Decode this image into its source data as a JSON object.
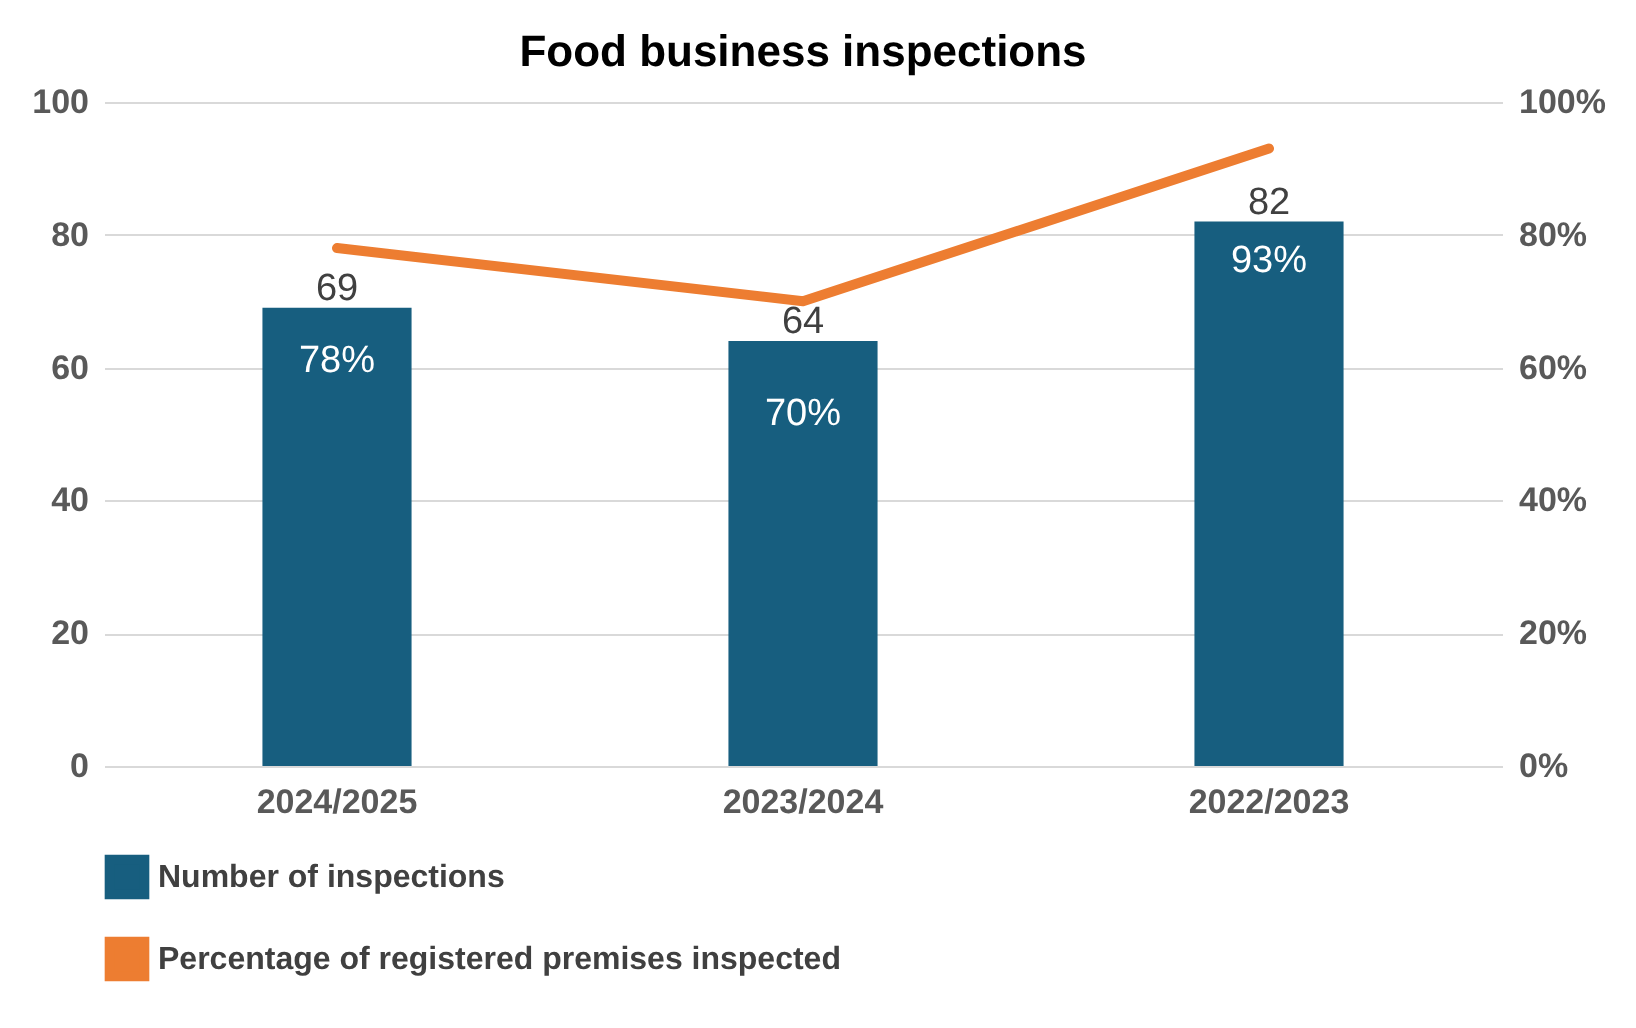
{
  "chart_data": {
    "type": "bar",
    "title": "Food business inspections",
    "categories": [
      "2024/2025",
      "2023/2024",
      "2022/2023"
    ],
    "series": [
      {
        "name": "Number of inspections",
        "color": "#175e7f",
        "values": [
          69,
          64,
          82
        ],
        "value_labels": [
          "69",
          "64",
          "82"
        ]
      },
      {
        "name": "Percentage of registered premises inspected",
        "type": "line",
        "axis": "y2",
        "color": "#ed7d31",
        "values": [
          78,
          70,
          93
        ],
        "value_labels": [
          "78%",
          "70%",
          "93%"
        ]
      }
    ],
    "ylim": [
      0,
      100
    ],
    "yticks": [
      0,
      20,
      40,
      60,
      80,
      100
    ],
    "y2lim": [
      0,
      100
    ],
    "y2ticks": [
      {
        "value": 0,
        "label": "0%"
      },
      {
        "value": 20,
        "label": "20%"
      },
      {
        "value": 40,
        "label": "40%"
      },
      {
        "value": 60,
        "label": "60%"
      },
      {
        "value": 80,
        "label": "80%"
      },
      {
        "value": 100,
        "label": "100%"
      }
    ],
    "grid": "y",
    "legend": "bottom",
    "marker": "none",
    "line_style": "solid"
  }
}
